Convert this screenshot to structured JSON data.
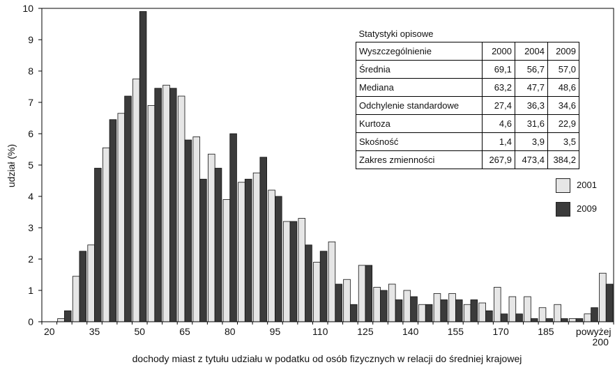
{
  "chart_data": {
    "type": "bar",
    "xlabel": "dochody miast z tytułu udziału w podatku od osób fizycznych w relacji do średniej krajowej",
    "ylabel": "udział (%)",
    "ylim": [
      0,
      10
    ],
    "yticks": [
      "0",
      "1",
      "2",
      "3",
      "4",
      "5",
      "6",
      "7",
      "8",
      "9",
      "10"
    ],
    "x_tick_labels": [
      "20",
      "35",
      "50",
      "65",
      "80",
      "95",
      "110",
      "125",
      "140",
      "155",
      "170",
      "185",
      "powyżej 200"
    ],
    "categories": [
      "20",
      "25",
      "30",
      "35",
      "40",
      "45",
      "50",
      "55",
      "60",
      "65",
      "70",
      "75",
      "80",
      "85",
      "90",
      "95",
      "100",
      "105",
      "110",
      "115",
      "120",
      "125",
      "130",
      "135",
      "140",
      "145",
      "150",
      "155",
      "160",
      "165",
      "170",
      "175",
      "180",
      "185",
      "190",
      "195",
      "200",
      "powyżej 200"
    ],
    "series": [
      {
        "name": "2001",
        "color": "#e6e6e6",
        "values": [
          0,
          0.1,
          1.45,
          2.45,
          5.55,
          6.65,
          7.75,
          6.9,
          7.55,
          7.2,
          5.9,
          5.35,
          3.9,
          4.45,
          4.75,
          4.2,
          3.2,
          3.3,
          1.9,
          2.55,
          1.35,
          1.8,
          1.1,
          1.2,
          1.0,
          0.55,
          0.9,
          0.9,
          0.55,
          0.6,
          1.1,
          0.8,
          0.8,
          0.45,
          0.55,
          0.1,
          0.25,
          1.55
        ]
      },
      {
        "name": "2009",
        "color": "#3b3b3b",
        "values": [
          0,
          0.35,
          2.25,
          4.9,
          6.45,
          7.2,
          9.9,
          7.45,
          7.45,
          5.8,
          4.55,
          4.9,
          6.0,
          4.55,
          5.25,
          4.0,
          3.2,
          2.45,
          2.25,
          1.2,
          0.55,
          1.8,
          1.0,
          0.7,
          0.8,
          0.55,
          0.7,
          0.7,
          0.7,
          0.35,
          0.25,
          0.25,
          0.1,
          0.1,
          0.1,
          0.1,
          0.45,
          1.2
        ]
      }
    ],
    "legend": [
      "2001",
      "2009"
    ],
    "legend_position": "right",
    "grid": false
  },
  "stats_table": {
    "title": "Statystyki opisowe",
    "headers": [
      "Wyszczególnienie",
      "2000",
      "2004",
      "2009"
    ],
    "rows": [
      [
        "Średnia",
        "69,1",
        "56,7",
        "57,0"
      ],
      [
        "Mediana",
        "63,2",
        "47,7",
        "48,6"
      ],
      [
        "Odchylenie standardowe",
        "27,4",
        "36,3",
        "34,6"
      ],
      [
        "Kurtoza",
        "4,6",
        "31,6",
        "22,9"
      ],
      [
        "Skośność",
        "1,4",
        "3,9",
        "3,5"
      ],
      [
        "Zakres zmienności",
        "267,9",
        "473,4",
        "384,2"
      ]
    ]
  }
}
